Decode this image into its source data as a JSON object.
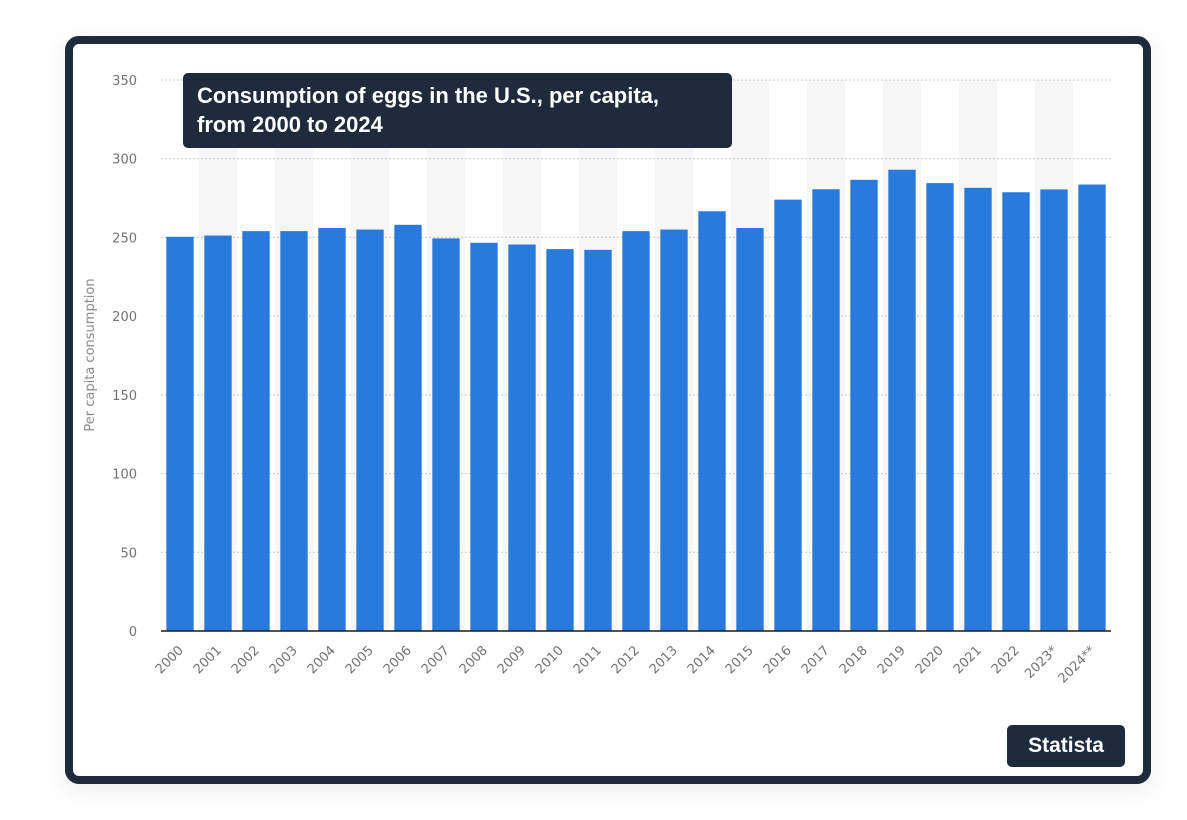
{
  "chart_data": {
    "type": "bar",
    "title": "Consumption of eggs in the U.S., per capita, from 2000 to 2024",
    "xlabel": "",
    "ylabel": "Per capita consumption",
    "categories": [
      "2000",
      "2001",
      "2002",
      "2003",
      "2004",
      "2005",
      "2006",
      "2007",
      "2008",
      "2009",
      "2010",
      "2011",
      "2012",
      "2013",
      "2014",
      "2015",
      "2016",
      "2017",
      "2018",
      "2019",
      "2020",
      "2021",
      "2022",
      "2023*",
      "2024**"
    ],
    "values": [
      250.4,
      251.2,
      254.0,
      254.0,
      256.0,
      255.0,
      258.0,
      249.4,
      246.6,
      245.5,
      242.6,
      242.1,
      254.0,
      255.0,
      266.6,
      256.0,
      274.0,
      280.6,
      286.6,
      293.0,
      284.5,
      281.5,
      278.7,
      280.5,
      283.6
    ],
    "ylim": [
      0,
      350
    ],
    "yticks": [
      0,
      50,
      100,
      150,
      200,
      250,
      300,
      350
    ],
    "grid": true,
    "bar_color": "#2a79dd"
  },
  "title_box": {
    "line1": "Consumption of eggs in the U.S., per capita,",
    "line2": "from 2000 to 2024"
  },
  "brand": "Statista",
  "colors": {
    "frame": "#1f2a3c",
    "bar": "#2a79dd"
  }
}
